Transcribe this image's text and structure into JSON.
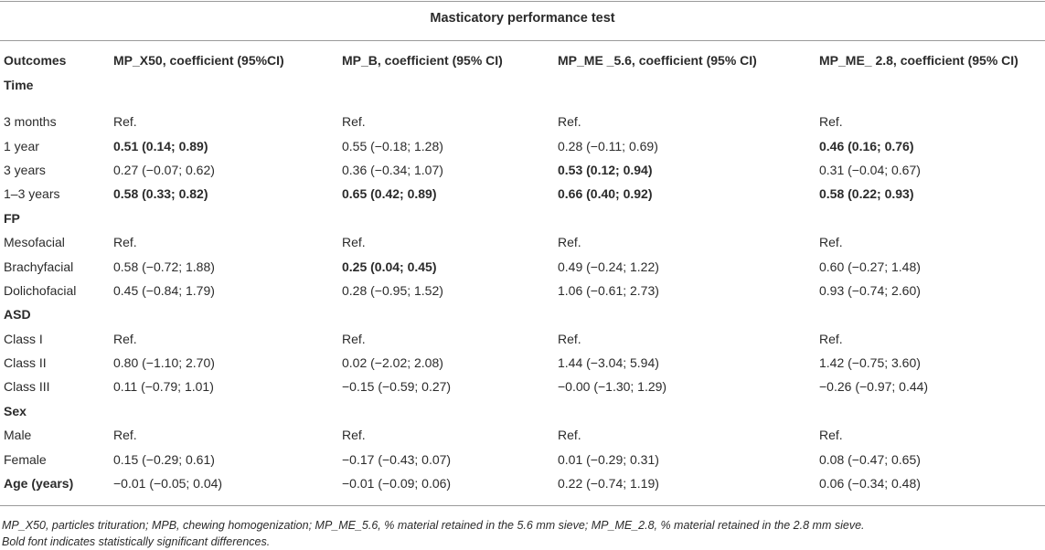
{
  "title": "Masticatory performance test",
  "headers": {
    "outcomes": "Outcomes",
    "time": "Time",
    "col1": "MP_X50, coefficient (95%CI)",
    "col2": "MP_B, coefficient (95% CI)",
    "col3": "MP_ME _5.6, coefficient (95% CI)",
    "col4": "MP_ME_ 2.8, coefficient (95% CI)"
  },
  "rows": [
    {
      "label": "3 months",
      "label_bold": false,
      "cells": [
        {
          "v": "Ref.",
          "b": false
        },
        {
          "v": "Ref.",
          "b": false
        },
        {
          "v": "Ref.",
          "b": false
        },
        {
          "v": "Ref.",
          "b": false
        }
      ]
    },
    {
      "label": "1 year",
      "label_bold": false,
      "cells": [
        {
          "v": "0.51 (0.14; 0.89)",
          "b": true
        },
        {
          "v": "0.55 (−0.18; 1.28)",
          "b": false
        },
        {
          "v": "0.28 (−0.11; 0.69)",
          "b": false
        },
        {
          "v": "0.46 (0.16; 0.76)",
          "b": true
        }
      ]
    },
    {
      "label": "3 years",
      "label_bold": false,
      "cells": [
        {
          "v": "0.27 (−0.07; 0.62)",
          "b": false
        },
        {
          "v": "0.36 (−0.34; 1.07)",
          "b": false
        },
        {
          "v": "0.53 (0.12; 0.94)",
          "b": true
        },
        {
          "v": "0.31 (−0.04; 0.67)",
          "b": false
        }
      ]
    },
    {
      "label": "1–3 years",
      "label_bold": false,
      "cells": [
        {
          "v": "0.58 (0.33; 0.82)",
          "b": true
        },
        {
          "v": "0.65 (0.42; 0.89)",
          "b": true
        },
        {
          "v": "0.66 (0.40; 0.92)",
          "b": true
        },
        {
          "v": "0.58 (0.22; 0.93)",
          "b": true
        }
      ]
    },
    {
      "label": "FP",
      "section": true
    },
    {
      "label": "Mesofacial",
      "label_bold": false,
      "cells": [
        {
          "v": "Ref.",
          "b": false
        },
        {
          "v": "Ref.",
          "b": false
        },
        {
          "v": "Ref.",
          "b": false
        },
        {
          "v": "Ref.",
          "b": false
        }
      ]
    },
    {
      "label": "Brachyfacial",
      "label_bold": false,
      "cells": [
        {
          "v": "0.58 (−0.72; 1.88)",
          "b": false
        },
        {
          "v": "0.25 (0.04; 0.45)",
          "b": true
        },
        {
          "v": "0.49 (−0.24; 1.22)",
          "b": false
        },
        {
          "v": "0.60 (−0.27; 1.48)",
          "b": false
        }
      ]
    },
    {
      "label": "Dolichofacial",
      "label_bold": false,
      "cells": [
        {
          "v": "0.45 (−0.84; 1.79)",
          "b": false
        },
        {
          "v": "0.28 (−0.95; 1.52)",
          "b": false
        },
        {
          "v": "1.06 (−0.61; 2.73)",
          "b": false
        },
        {
          "v": "0.93 (−0.74; 2.60)",
          "b": false
        }
      ]
    },
    {
      "label": "ASD",
      "section": true
    },
    {
      "label": "Class I",
      "label_bold": false,
      "cells": [
        {
          "v": "Ref.",
          "b": false
        },
        {
          "v": "Ref.",
          "b": false
        },
        {
          "v": "Ref.",
          "b": false
        },
        {
          "v": "Ref.",
          "b": false
        }
      ]
    },
    {
      "label": "Class II",
      "label_bold": false,
      "cells": [
        {
          "v": "0.80 (−1.10; 2.70)",
          "b": false
        },
        {
          "v": "0.02 (−2.02; 2.08)",
          "b": false
        },
        {
          "v": "1.44 (−3.04; 5.94)",
          "b": false
        },
        {
          "v": "1.42 (−0.75; 3.60)",
          "b": false
        }
      ]
    },
    {
      "label": "Class III",
      "label_bold": false,
      "cells": [
        {
          "v": "0.11 (−0.79; 1.01)",
          "b": false
        },
        {
          "v": "−0.15 (−0.59; 0.27)",
          "b": false
        },
        {
          "v": "−0.00 (−1.30; 1.29)",
          "b": false
        },
        {
          "v": "−0.26 (−0.97; 0.44)",
          "b": false
        }
      ]
    },
    {
      "label": "Sex",
      "section": true
    },
    {
      "label": "Male",
      "label_bold": false,
      "cells": [
        {
          "v": "Ref.",
          "b": false
        },
        {
          "v": "Ref.",
          "b": false
        },
        {
          "v": "Ref.",
          "b": false
        },
        {
          "v": "Ref.",
          "b": false
        }
      ]
    },
    {
      "label": "Female",
      "label_bold": false,
      "cells": [
        {
          "v": "0.15 (−0.29; 0.61)",
          "b": false
        },
        {
          "v": "−0.17 (−0.43; 0.07)",
          "b": false
        },
        {
          "v": "0.01 (−0.29; 0.31)",
          "b": false
        },
        {
          "v": "0.08 (−0.47; 0.65)",
          "b": false
        }
      ]
    },
    {
      "label": "Age (years)",
      "label_bold": true,
      "cells": [
        {
          "v": "−0.01 (−0.05; 0.04)",
          "b": false
        },
        {
          "v": "−0.01 (−0.09; 0.06)",
          "b": false
        },
        {
          "v": "0.22 (−0.74; 1.19)",
          "b": false
        },
        {
          "v": "0.06 (−0.34; 0.48)",
          "b": false
        }
      ]
    }
  ],
  "footnote": {
    "line1": "MP_X50, particles trituration; MPB, chewing homogenization; MP_ME_5.6, % material retained in the 5.6 mm sieve; MP_ME_2.8, % material retained in the 2.8 mm sieve.",
    "line2": "Bold font indicates statistically significant differences."
  }
}
